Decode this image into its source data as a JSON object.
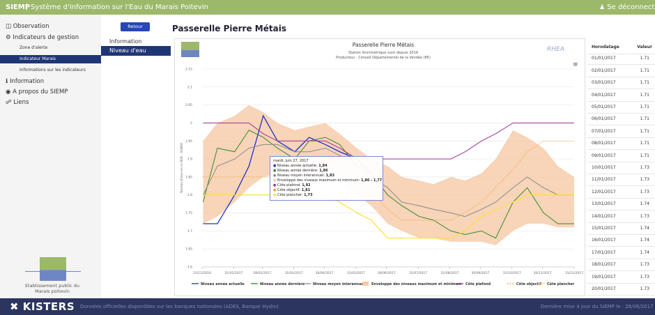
{
  "header": {
    "brand": "SIEMP",
    "title": "Système d'Information sur l'Eau du Marais Poitevin",
    "logout": "Se déconnecter"
  },
  "sidebar": {
    "menu": [
      "Observation",
      "Indicateurs de gestion"
    ],
    "submenu": [
      "Zone d'alerte",
      "Indicateur Marais",
      "Informations sur les indicateurs"
    ],
    "menu2": [
      "Information",
      "A propos du SIEMP",
      "Liens"
    ],
    "logo_text": "Etablissement public du Marais poitevin"
  },
  "subnav": {
    "back": "Retour",
    "heading": "Information",
    "active": "Niveau d'eau"
  },
  "page_title": "Passerelle Pierre Métais",
  "chart_data": {
    "type": "line",
    "title": "Passerelle Pierre Métais",
    "subtitle": "Station limnimétrique suivi depuis 2014",
    "producer": "Producteur : Conseil Départemental de la Vendée (85)",
    "logo": "RHEA",
    "y_label": "Niveau d'eau en m NGF - IGN69",
    "x": [
      "01/01/2017",
      "15/01/2017",
      "01/02/2017",
      "15/02/2017",
      "01/03/2017",
      "15/03/2017",
      "01/04/2017",
      "15/04/2017",
      "01/05/2017",
      "15/05/2017",
      "01/06/2017",
      "15/06/2017",
      "01/07/2017",
      "15/07/2017",
      "01/08/2017",
      "15/08/2017",
      "01/09/2017",
      "15/09/2017",
      "01/10/2017",
      "15/10/2017",
      "01/11/2017",
      "15/11/2017",
      "01/12/2017",
      "15/12/2017",
      "31/12/2017"
    ],
    "xlim": [
      "31/12/2016",
      "31/12/2017"
    ],
    "xticks": [
      "31/12/2016",
      "31/01/2017",
      "28/02/2017",
      "31/03/2017",
      "30/04/2017",
      "31/05/2017",
      "30/06/2017",
      "31/07/2017",
      "31/08/2017",
      "30/09/2017",
      "31/10/2017",
      "30/11/2017",
      "31/12/2017"
    ],
    "ylim": [
      1.6,
      2.15
    ],
    "yticks": [
      1.6,
      1.65,
      1.7,
      1.75,
      1.8,
      1.85,
      1.9,
      1.95,
      2,
      2.05,
      2.1,
      2.15
    ],
    "grid": true,
    "envelope": {
      "name": "Enveloppe des niveaux maximum et minimum",
      "color": "#f6c9a6",
      "low": [
        1.72,
        1.74,
        1.78,
        1.82,
        1.85,
        1.86,
        1.86,
        1.87,
        1.87,
        1.85,
        1.8,
        1.77,
        1.72,
        1.7,
        1.68,
        1.68,
        1.67,
        1.67,
        1.67,
        1.66,
        1.7,
        1.72,
        1.72,
        1.71,
        1.71
      ],
      "high": [
        1.95,
        2.0,
        2.02,
        2.05,
        2.03,
        2.0,
        1.98,
        1.99,
        2.0,
        1.97,
        1.93,
        1.9,
        1.88,
        1.85,
        1.84,
        1.83,
        1.85,
        1.84,
        1.86,
        1.9,
        1.98,
        1.96,
        1.93,
        1.88,
        1.85
      ]
    },
    "series": [
      {
        "name": "Niveau année actuelle",
        "color": "#1a2fd0",
        "dash": false,
        "values": [
          1.72,
          1.72,
          1.8,
          1.88,
          2.02,
          1.95,
          1.92,
          1.96,
          1.94,
          1.92,
          1.9,
          1.86,
          null,
          null,
          null,
          null,
          null,
          null,
          null,
          null,
          null,
          null,
          null,
          null,
          null
        ]
      },
      {
        "name": "Niveau année dernière",
        "color": "#2f8a2a",
        "dash": false,
        "values": [
          1.78,
          1.93,
          1.92,
          1.98,
          1.96,
          1.93,
          1.9,
          1.95,
          1.96,
          1.94,
          1.88,
          1.86,
          1.8,
          1.77,
          1.74,
          1.73,
          1.7,
          1.69,
          1.7,
          1.68,
          1.78,
          1.82,
          1.75,
          1.72,
          1.72
        ]
      },
      {
        "name": "Niveau moyen interannuel",
        "color": "#8a8a8a",
        "dash": false,
        "values": [
          1.8,
          1.88,
          1.9,
          1.93,
          1.94,
          1.94,
          1.92,
          1.92,
          1.93,
          1.91,
          1.88,
          1.85,
          1.82,
          1.78,
          1.77,
          1.76,
          1.75,
          1.74,
          1.76,
          1.78,
          1.82,
          1.85,
          1.82,
          1.8,
          1.8
        ]
      },
      {
        "name": "Côte plafond",
        "color": "#9b2f9b",
        "dash": false,
        "values": [
          2.0,
          2.0,
          2.0,
          2.0,
          1.97,
          1.95,
          1.95,
          1.95,
          1.95,
          1.93,
          1.9,
          1.9,
          1.9,
          1.9,
          1.9,
          1.9,
          1.9,
          1.92,
          1.95,
          1.97,
          2.0,
          2.0,
          2.0,
          2.0,
          2.0
        ]
      },
      {
        "name": "Côte objectif",
        "color": "#f0a030",
        "dash": true,
        "values": [
          1.85,
          1.85,
          1.85,
          1.85,
          1.85,
          1.85,
          1.85,
          1.85,
          1.85,
          1.83,
          1.81,
          1.81,
          1.76,
          1.73,
          1.73,
          1.73,
          1.73,
          1.75,
          1.78,
          1.82,
          1.87,
          1.92,
          1.95,
          1.95,
          1.95
        ]
      },
      {
        "name": "Côte plancher",
        "color": "#ffe033",
        "dash": false,
        "values": [
          1.8,
          1.8,
          1.8,
          1.8,
          1.8,
          1.8,
          1.8,
          1.8,
          1.8,
          1.78,
          1.75,
          1.73,
          1.68,
          1.68,
          1.68,
          1.68,
          1.68,
          1.7,
          1.74,
          1.76,
          1.78,
          1.8,
          1.8,
          1.8,
          1.8
        ]
      }
    ]
  },
  "tooltip": {
    "date": "mardi, juin 27, 2017",
    "items": [
      {
        "label": "Niveau année actuelle: ",
        "value": "1,84"
      },
      {
        "label": "Niveau année dernière: ",
        "value": "1,86"
      },
      {
        "label": "Niveau moyen interannuel: ",
        "value": "1,83"
      },
      {
        "label": "Enveloppe des niveaux maximum et minimum: ",
        "value": "1,86 - 1,77"
      },
      {
        "label": "Côte plafond: ",
        "value": "1,92"
      },
      {
        "label": "Côte objectif: ",
        "value": "1,81"
      },
      {
        "label": "Côte plancher: ",
        "value": "1,73"
      }
    ]
  },
  "table": {
    "headers": [
      "Horodatage",
      "Valeur"
    ],
    "rows": [
      [
        "01/01/2017",
        1.71
      ],
      [
        "02/01/2017",
        1.71
      ],
      [
        "03/01/2017",
        1.71
      ],
      [
        "04/01/2017",
        1.71
      ],
      [
        "05/01/2017",
        1.71
      ],
      [
        "06/01/2017",
        1.71
      ],
      [
        "07/01/2017",
        1.71
      ],
      [
        "08/01/2017",
        1.71
      ],
      [
        "09/01/2017",
        1.71
      ],
      [
        "10/01/2017",
        1.73
      ],
      [
        "11/01/2017",
        1.73
      ],
      [
        "12/01/2017",
        1.73
      ],
      [
        "13/01/2017",
        1.74
      ],
      [
        "14/01/2017",
        1.73
      ],
      [
        "15/01/2017",
        1.74
      ],
      [
        "16/01/2017",
        1.74
      ],
      [
        "17/01/2017",
        1.74
      ],
      [
        "18/01/2017",
        1.73
      ],
      [
        "19/01/2017",
        1.73
      ],
      [
        "20/01/2017",
        1.73
      ],
      [
        "21/01/2017",
        1.73
      ]
    ]
  },
  "footer": {
    "logo": "KISTERS",
    "note": "Données officielles disponibles sur les banques nationales (ADES, Banque Hydro)",
    "update": "Dernière mise à jour du SIEMP le : 28/06/2017 16"
  }
}
